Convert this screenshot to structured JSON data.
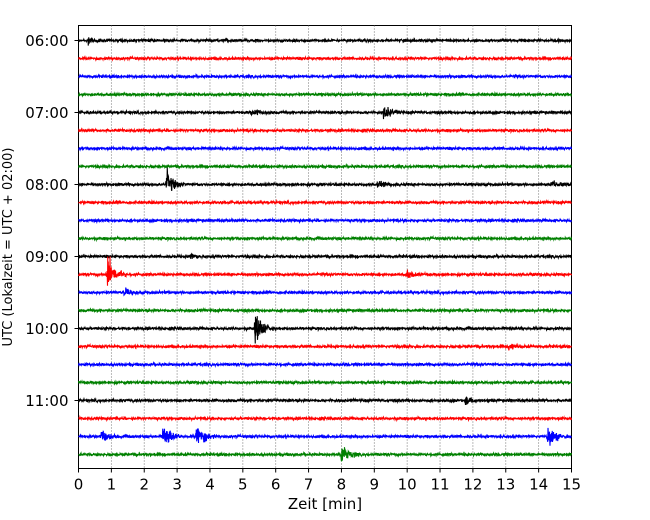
{
  "chart_data": {
    "type": "line",
    "title": "",
    "xlabel": "Zeit  [min]",
    "ylabel": "UTC (Lokalzeit = UTC + 02:00)",
    "xlim": [
      0,
      15
    ],
    "x_ticks": [
      0,
      1,
      2,
      3,
      4,
      5,
      6,
      7,
      8,
      9,
      10,
      11,
      12,
      13,
      14,
      15
    ],
    "y_tick_labels": [
      "06:00",
      "07:00",
      "08:00",
      "09:00",
      "10:00",
      "11:00"
    ],
    "trace_interval_minutes": 15,
    "start_time": "06:00",
    "grid": "vertical dotted",
    "color_cycle": [
      "#000000",
      "#ff0000",
      "#0000ff",
      "#008000"
    ],
    "traces": [
      {
        "start": "06:00",
        "color": "#000000",
        "events": [
          {
            "t": 0.3,
            "amp": 0.3
          }
        ]
      },
      {
        "start": "06:15",
        "color": "#ff0000",
        "events": []
      },
      {
        "start": "06:30",
        "color": "#0000ff",
        "events": []
      },
      {
        "start": "06:45",
        "color": "#008000",
        "events": []
      },
      {
        "start": "07:00",
        "color": "#000000",
        "events": [
          {
            "t": 5.3,
            "amp": 0.3
          },
          {
            "t": 9.3,
            "amp": 0.6
          }
        ]
      },
      {
        "start": "07:15",
        "color": "#ff0000",
        "events": []
      },
      {
        "start": "07:30",
        "color": "#0000ff",
        "events": []
      },
      {
        "start": "07:45",
        "color": "#008000",
        "events": []
      },
      {
        "start": "08:00",
        "color": "#000000",
        "events": [
          {
            "t": 2.7,
            "amp": 1.0
          },
          {
            "t": 9.1,
            "amp": 0.25
          },
          {
            "t": 14.4,
            "amp": 0.25
          }
        ]
      },
      {
        "start": "08:15",
        "color": "#ff0000",
        "events": []
      },
      {
        "start": "08:30",
        "color": "#0000ff",
        "events": []
      },
      {
        "start": "08:45",
        "color": "#008000",
        "events": []
      },
      {
        "start": "09:00",
        "color": "#000000",
        "events": [
          {
            "t": 3.4,
            "amp": 0.3
          }
        ]
      },
      {
        "start": "09:15",
        "color": "#ff0000",
        "events": [
          {
            "t": 0.9,
            "amp": 1.6
          },
          {
            "t": 10.0,
            "amp": 0.3
          }
        ]
      },
      {
        "start": "09:30",
        "color": "#0000ff",
        "events": [
          {
            "t": 1.4,
            "amp": 0.3
          }
        ]
      },
      {
        "start": "09:45",
        "color": "#008000",
        "events": []
      },
      {
        "start": "10:00",
        "color": "#000000",
        "events": [
          {
            "t": 5.4,
            "amp": 1.4
          }
        ]
      },
      {
        "start": "10:15",
        "color": "#ff0000",
        "events": [
          {
            "t": 13.1,
            "amp": 0.3
          }
        ]
      },
      {
        "start": "10:30",
        "color": "#0000ff",
        "events": []
      },
      {
        "start": "10:45",
        "color": "#008000",
        "events": []
      },
      {
        "start": "11:00",
        "color": "#000000",
        "events": [
          {
            "t": 11.8,
            "amp": 0.3
          }
        ]
      },
      {
        "start": "11:15",
        "color": "#ff0000",
        "events": []
      },
      {
        "start": "11:30",
        "color": "#0000ff",
        "events": [
          {
            "t": 0.7,
            "amp": 0.5
          },
          {
            "t": 2.6,
            "amp": 1.3
          },
          {
            "t": 3.6,
            "amp": 1.3
          },
          {
            "t": 14.3,
            "amp": 1.0
          }
        ]
      },
      {
        "start": "11:45",
        "color": "#008000",
        "events": [
          {
            "t": 8.0,
            "amp": 0.9
          }
        ]
      }
    ]
  }
}
